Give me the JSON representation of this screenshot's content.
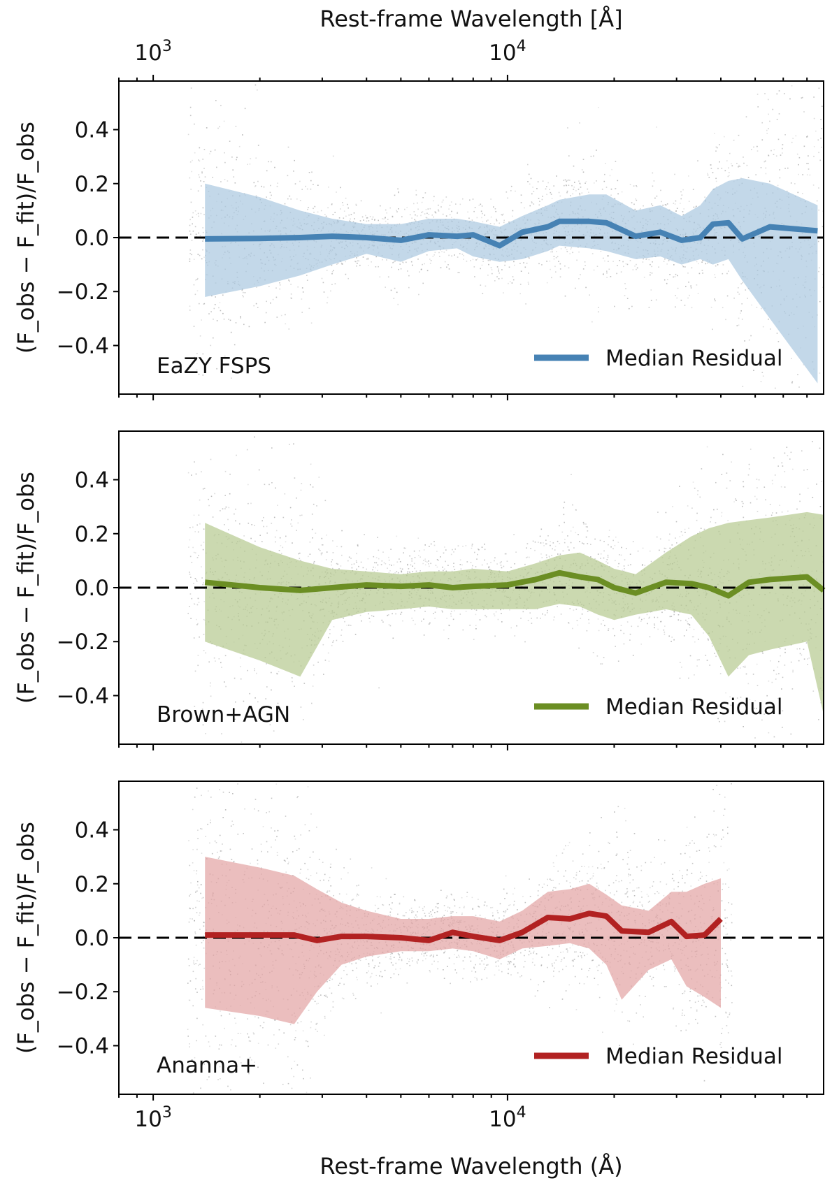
{
  "chart_data": [
    {
      "type": "line",
      "panel_label": "EaZY FSPS",
      "top_xlabel": "Rest-frame Wavelength [Å]",
      "xlabel": "Rest-frame Wavelength (Å)",
      "ylabel": "(F_obs − F_fit)/F_obs",
      "xscale": "log",
      "xlim": [
        800,
        78000
      ],
      "ylim": [
        -0.58,
        0.58
      ],
      "yticks": [
        -0.4,
        -0.2,
        0.0,
        0.2,
        0.4
      ],
      "ytick_labels": [
        "−0.4",
        "−0.2",
        "0.0",
        "0.2",
        "0.4"
      ],
      "xtick_labels": [
        "10",
        "10"
      ],
      "xtick_exponents": [
        "3",
        "4"
      ],
      "reference_line": 0.0,
      "legend": "Median Residual",
      "legend_position": "lower-right",
      "color": "#4682b4",
      "band_color": "#a9c7e0",
      "series": [
        {
          "name": "Median Residual",
          "x": [
            1400,
            2000,
            2600,
            3200,
            4000,
            5000,
            6000,
            7200,
            8000,
            9500,
            11000,
            13000,
            14000,
            17000,
            19000,
            23000,
            27000,
            31000,
            35000,
            38000,
            42000,
            46000,
            55000,
            75000
          ],
          "y": [
            -0.005,
            -0.003,
            0.0,
            0.005,
            0.0,
            -0.01,
            0.01,
            0.005,
            0.01,
            -0.03,
            0.02,
            0.04,
            0.06,
            0.06,
            0.055,
            0.005,
            0.02,
            -0.01,
            0.0,
            0.05,
            0.055,
            -0.005,
            0.04,
            0.025
          ],
          "lower": [
            -0.22,
            -0.18,
            -0.14,
            -0.1,
            -0.06,
            -0.09,
            -0.05,
            -0.04,
            -0.07,
            -0.09,
            -0.08,
            -0.05,
            -0.03,
            -0.04,
            -0.05,
            -0.08,
            -0.07,
            -0.1,
            -0.08,
            -0.1,
            -0.08,
            -0.16,
            -0.3,
            -0.54
          ],
          "upper": [
            0.2,
            0.15,
            0.1,
            0.07,
            0.05,
            0.05,
            0.07,
            0.07,
            0.06,
            0.04,
            0.08,
            0.12,
            0.14,
            0.16,
            0.16,
            0.1,
            0.12,
            0.08,
            0.12,
            0.18,
            0.21,
            0.22,
            0.2,
            0.12
          ]
        }
      ]
    },
    {
      "type": "line",
      "panel_label": "Brown+AGN",
      "xscale": "log",
      "xlim": [
        800,
        78000
      ],
      "ylim": [
        -0.58,
        0.58
      ],
      "yticks": [
        -0.4,
        -0.2,
        0.0,
        0.2,
        0.4
      ],
      "ytick_labels": [
        "−0.4",
        "−0.2",
        "0.0",
        "0.2",
        "0.4"
      ],
      "ylabel": "(F_obs − F_fit)/F_obs",
      "reference_line": 0.0,
      "legend": "Median Residual",
      "legend_position": "lower-right",
      "color": "#6b8e23",
      "band_color": "#b5c98f",
      "series": [
        {
          "name": "Median Residual",
          "x": [
            1400,
            2000,
            2600,
            3200,
            4000,
            5000,
            6000,
            7000,
            8000,
            10000,
            12000,
            14000,
            16000,
            18000,
            20000,
            23000,
            28000,
            33000,
            37000,
            42000,
            48000,
            55000,
            70000,
            78000
          ],
          "y": [
            0.02,
            0.0,
            -0.01,
            0.0,
            0.01,
            0.005,
            0.01,
            0.0,
            0.005,
            0.01,
            0.03,
            0.055,
            0.04,
            0.03,
            0.0,
            -0.02,
            0.02,
            0.015,
            0.0,
            -0.03,
            0.02,
            0.03,
            0.04,
            -0.01
          ],
          "lower": [
            -0.2,
            -0.27,
            -0.33,
            -0.12,
            -0.09,
            -0.08,
            -0.07,
            -0.08,
            -0.08,
            -0.08,
            -0.08,
            -0.06,
            -0.07,
            -0.1,
            -0.12,
            -0.1,
            -0.08,
            -0.1,
            -0.18,
            -0.33,
            -0.25,
            -0.23,
            -0.2,
            -0.47
          ],
          "upper": [
            0.24,
            0.15,
            0.1,
            0.07,
            0.06,
            0.05,
            0.06,
            0.06,
            0.07,
            0.06,
            0.09,
            0.12,
            0.13,
            0.1,
            0.07,
            0.05,
            0.13,
            0.19,
            0.22,
            0.24,
            0.25,
            0.26,
            0.28,
            0.27
          ]
        }
      ]
    },
    {
      "type": "line",
      "panel_label": "Ananna+",
      "xlabel": "Rest-frame Wavelength (Å)",
      "ylabel": "(F_obs − F_fit)/F_obs",
      "xscale": "log",
      "xlim": [
        800,
        78000
      ],
      "ylim": [
        -0.58,
        0.58
      ],
      "yticks": [
        -0.4,
        -0.2,
        0.0,
        0.2,
        0.4
      ],
      "ytick_labels": [
        "−0.4",
        "−0.2",
        "0.0",
        "0.2",
        "0.4"
      ],
      "xtick_labels": [
        "10",
        "10"
      ],
      "xtick_exponents": [
        "3",
        "4"
      ],
      "reference_line": 0.0,
      "legend": "Median Residual",
      "legend_position": "lower-right",
      "color": "#b22222",
      "band_color": "#e3a3a3",
      "series": [
        {
          "name": "Median Residual",
          "x": [
            1400,
            2000,
            2500,
            2900,
            3400,
            4000,
            5000,
            6000,
            7000,
            8000,
            9500,
            11000,
            13000,
            15000,
            17000,
            19000,
            21000,
            25000,
            29000,
            32000,
            36000,
            40000
          ],
          "y": [
            0.01,
            0.01,
            0.01,
            -0.01,
            0.005,
            0.005,
            0.0,
            -0.01,
            0.02,
            0.005,
            -0.01,
            0.02,
            0.075,
            0.07,
            0.09,
            0.08,
            0.025,
            0.02,
            0.06,
            0.005,
            0.01,
            0.07
          ],
          "lower": [
            -0.26,
            -0.29,
            -0.32,
            -0.2,
            -0.1,
            -0.07,
            -0.05,
            -0.05,
            -0.04,
            -0.05,
            -0.08,
            -0.04,
            -0.03,
            -0.02,
            -0.04,
            -0.1,
            -0.23,
            -0.12,
            -0.08,
            -0.18,
            -0.22,
            -0.26
          ],
          "upper": [
            0.3,
            0.26,
            0.23,
            0.18,
            0.13,
            0.1,
            0.07,
            0.07,
            0.08,
            0.08,
            0.06,
            0.1,
            0.17,
            0.18,
            0.2,
            0.16,
            0.12,
            0.1,
            0.17,
            0.17,
            0.2,
            0.22
          ]
        }
      ]
    }
  ]
}
